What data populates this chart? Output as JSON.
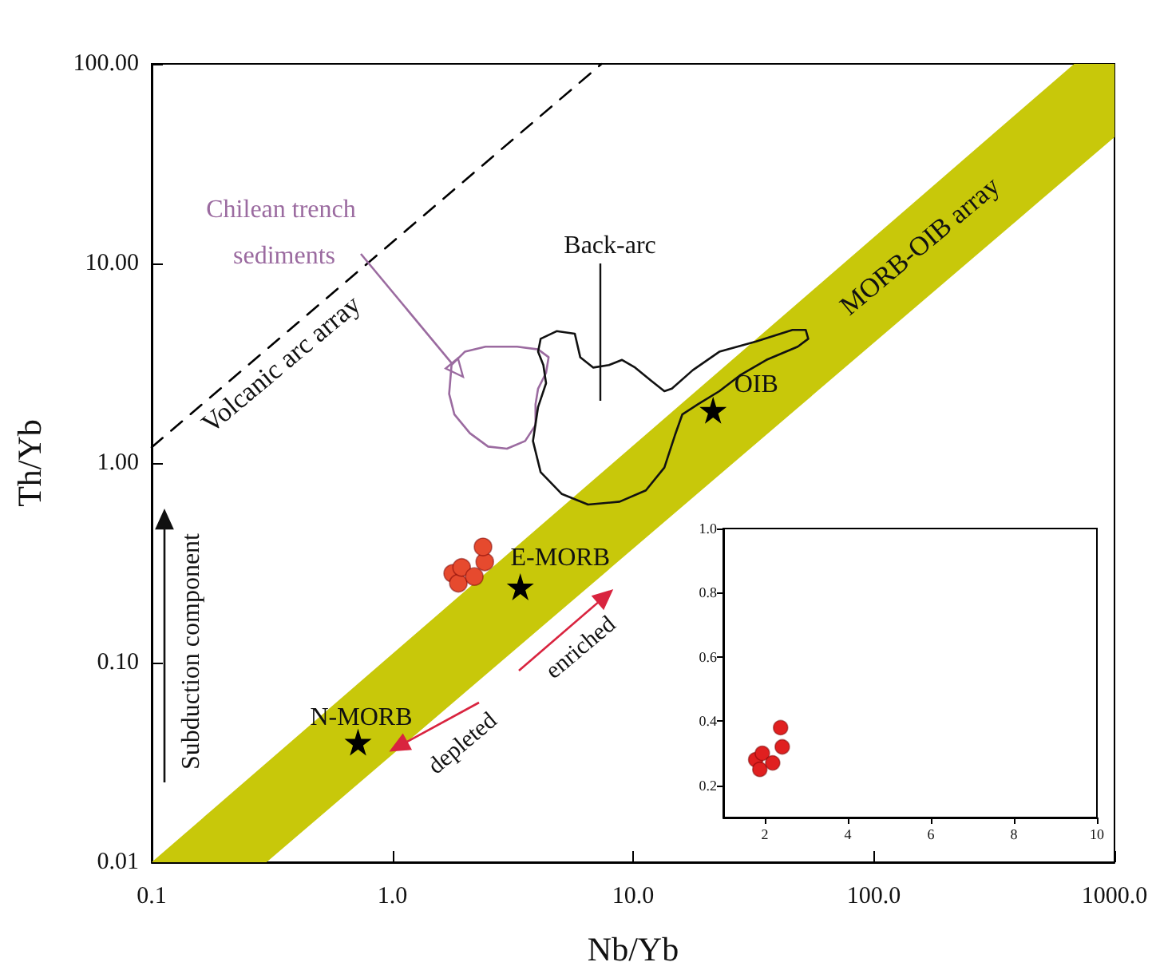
{
  "chart_data": [
    {
      "type": "scatter",
      "xlabel": "Nb/Yb",
      "ylabel": "Th/Yb",
      "log": "xy",
      "xlim": [
        0.1,
        1000
      ],
      "xticks": [
        0.1,
        {
          "value": 1,
          "label": "1.0"
        },
        {
          "value": 10,
          "label": "10.0"
        },
        {
          "value": 100,
          "label": "100.0"
        },
        {
          "value": 1000,
          "label": "1000.0"
        }
      ],
      "ylim": [
        0.01,
        100
      ],
      "yticks": [
        0.01,
        {
          "value": 0.1,
          "label": "0.10"
        },
        {
          "value": 1,
          "label": "1.00"
        },
        {
          "value": 10,
          "label": "10.00"
        },
        {
          "value": 100,
          "label": "100.00"
        }
      ],
      "series": [
        {
          "type": "area",
          "color": "#c8c80a",
          "x": [
            0.1,
            0.3,
            1000,
            1000,
            680
          ],
          "values": [
            0.01,
            0.01,
            43,
            100,
            100
          ]
        },
        {
          "type": "line",
          "line_style": "dashed",
          "marker": "none",
          "color": "#000000",
          "x": [
            0.1,
            7.4
          ],
          "values": [
            1.2,
            100
          ]
        },
        {
          "marker": "star",
          "color": "#000000",
          "x": [
            0.72,
            3.4,
            21.5
          ],
          "values": [
            0.04,
            0.24,
            1.84
          ]
        },
        {
          "marker": "circle",
          "color": "#e64a2e",
          "x": [
            1.78,
            1.88,
            1.94,
            2.19,
            2.42,
            2.38
          ],
          "values": [
            0.28,
            0.25,
            0.3,
            0.27,
            0.32,
            0.38
          ]
        }
      ],
      "annotations": [
        "Chilean trench sediments",
        "Back-arc",
        {
          "text": "N-MORB",
          "x": 0.72,
          "y": 0.04
        },
        {
          "text": "E-MORB",
          "x": 3.4,
          "y": 0.24
        },
        {
          "text": "OIB",
          "x": 21.5,
          "y": 1.84
        },
        "MORB-OIB array",
        "Volcanic arc array",
        "depleted",
        "enriched",
        "Subduction component"
      ]
    },
    {
      "type": "scatter",
      "xlim": [
        1,
        10
      ],
      "xticks": [
        2,
        4,
        6,
        8,
        10
      ],
      "ylim": [
        0.1,
        1.0
      ],
      "yticks": [
        0.2,
        0.4,
        0.6,
        0.8,
        {
          "value": 1,
          "label": "1.0"
        }
      ],
      "series": [
        {
          "marker": "circle",
          "color": "#e02020",
          "x": [
            1.78,
            1.88,
            1.94,
            2.19,
            2.42,
            2.38
          ],
          "values": [
            0.28,
            0.25,
            0.3,
            0.27,
            0.32,
            0.38
          ]
        }
      ]
    }
  ]
}
